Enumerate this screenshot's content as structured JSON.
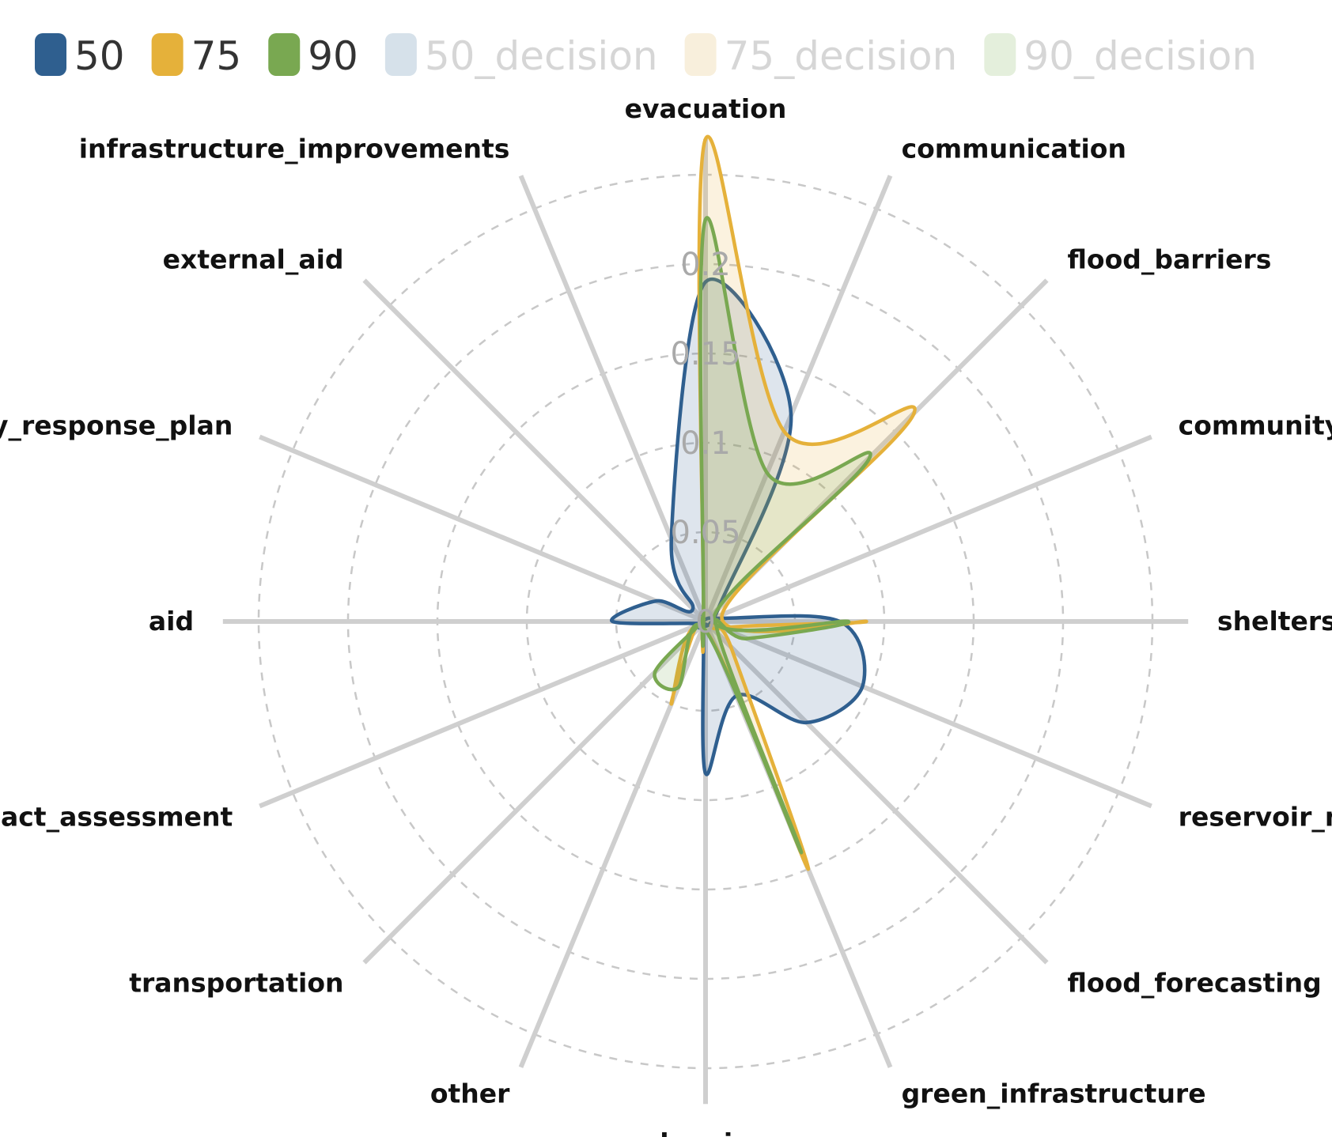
{
  "chart_data": {
    "type": "radar",
    "title": "",
    "axes": [
      "evacuation",
      "communication",
      "flood_barriers",
      "community_involvement",
      "shelters",
      "reservoir_management",
      "flood_forecasting",
      "green_infrastructure",
      "planning",
      "other",
      "transportation",
      "environmental_impact_assessment",
      "aid",
      "emergency_response_plan",
      "external_aid",
      "infrastructure_improvements"
    ],
    "radial_ticks": [
      0,
      0.05,
      0.1,
      0.15,
      0.2
    ],
    "radial_tick_labels": [
      "0",
      "0.05",
      "0.1",
      "0.15",
      "0.2"
    ],
    "rmax": 0.25,
    "grid": true,
    "legend_position": "top-left",
    "series": [
      {
        "name": "50",
        "color": "#2f5f8f",
        "visible": true,
        "values": [
          0.19,
          0.125,
          0.01,
          0.005,
          0.075,
          0.095,
          0.08,
          0.045,
          0.085,
          0.003,
          0.005,
          0.003,
          0.052,
          0.03,
          0.01,
          0.05
        ]
      },
      {
        "name": "75",
        "color": "#e5b13a",
        "visible": true,
        "values": [
          0.27,
          0.115,
          0.165,
          0.01,
          0.09,
          0.01,
          0.02,
          0.15,
          0.005,
          0.05,
          0.01,
          0.003,
          0.003,
          0.003,
          0.003,
          0.003
        ]
      },
      {
        "name": "90",
        "color": "#79a851",
        "visible": true,
        "values": [
          0.225,
          0.09,
          0.13,
          0.005,
          0.08,
          0.025,
          0.01,
          0.14,
          0.005,
          0.04,
          0.04,
          0.003,
          0.003,
          0.003,
          0.003,
          0.003
        ]
      },
      {
        "name": "50_decision",
        "color": "#d6e1ea",
        "visible": false,
        "values": []
      },
      {
        "name": "75_decision",
        "color": "#f8efdc",
        "visible": false,
        "values": []
      },
      {
        "name": "90_decision",
        "color": "#e4efdc",
        "visible": false,
        "values": []
      }
    ]
  }
}
